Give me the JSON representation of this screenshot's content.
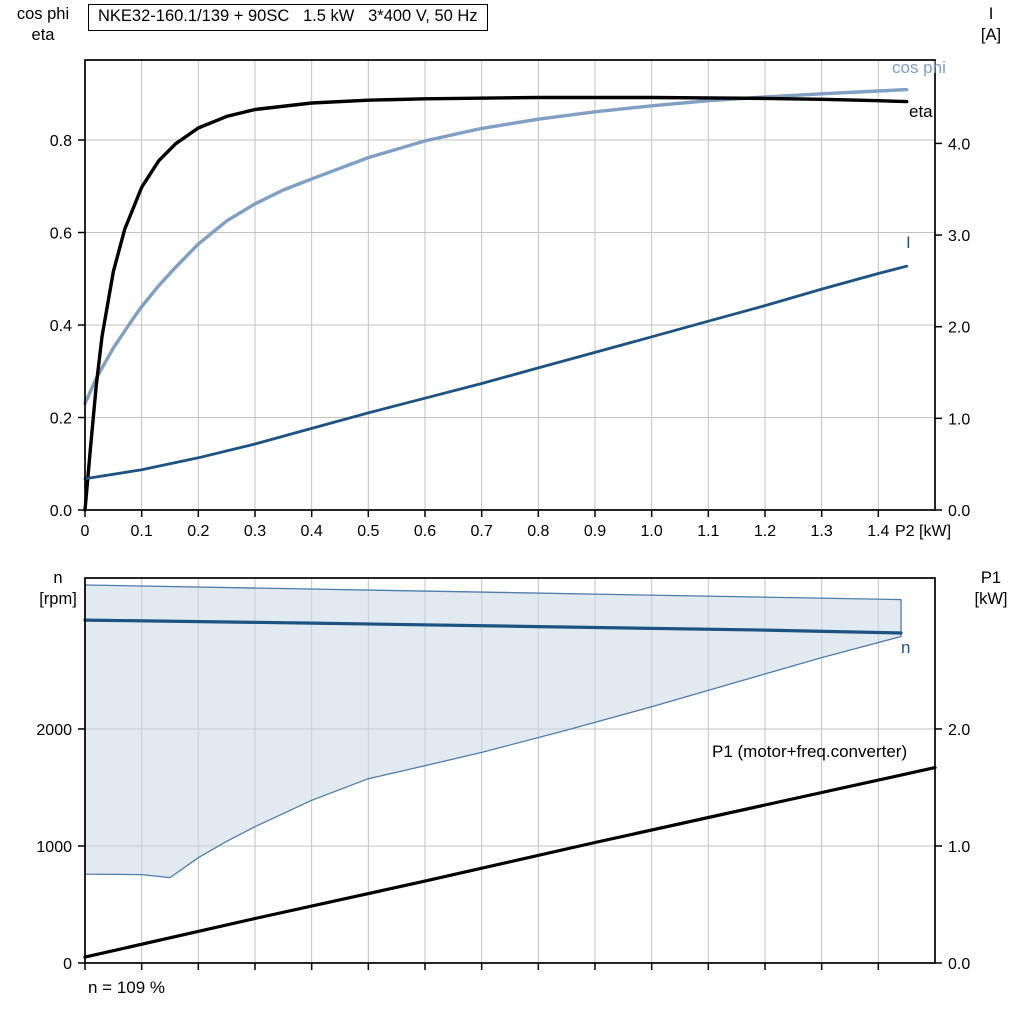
{
  "title_box": {
    "text": "NKE32-160.1/139 + 90SC   1.5 kW   3*400 V, 50 Hz"
  },
  "axis_corner_labels": {
    "top_left": [
      "cos phi",
      "eta"
    ],
    "top_right": [
      "I",
      "[A]"
    ],
    "bottom_left": [
      "n",
      "[rpm]"
    ],
    "bottom_right": [
      "P1",
      "[kW]"
    ]
  },
  "annotations": {
    "cos_phi": "cos phi",
    "eta": "eta",
    "current": "I",
    "speed": "n",
    "p1": "P1 (motor+freq.converter)",
    "note": "n = 109 %"
  },
  "colors": {
    "light_blue": "#7fa0c2",
    "dark_blue": "#1d5382",
    "black": "#000000",
    "envelope_fill": "#c9d7e5",
    "envelope_stroke": "#4d7dab",
    "grid": "#c2c2c2"
  },
  "chart_data": [
    {
      "type": "line",
      "title": "NKE32-160.1/139 + 90SC   1.5 kW   3*400 V, 50 Hz",
      "grid": true,
      "x_axis": {
        "min": 0,
        "max": 1.5,
        "label": "P2 [kW]",
        "ticks": [
          0,
          0.1,
          0.2,
          0.3,
          0.4,
          0.5,
          0.6,
          0.7,
          0.8,
          0.9,
          1.0,
          1.1,
          1.2,
          1.3,
          1.4
        ],
        "tick_labels": [
          "0",
          "0.1",
          "0.2",
          "0.3",
          "0.4",
          "0.5",
          "0.6",
          "0.7",
          "0.8",
          "0.9",
          "1.0",
          "1.1",
          "1.2",
          "1.3",
          "1.4"
        ]
      },
      "y_left": {
        "min": 0,
        "max": 0.973,
        "label": "cos phi / eta",
        "ticks": [
          0,
          0.2,
          0.4,
          0.6,
          0.8
        ],
        "tick_labels": [
          "0.0",
          "0.2",
          "0.4",
          "0.6",
          "0.8"
        ]
      },
      "y_right": {
        "min": 0,
        "max": 4.91,
        "label": "I [A]",
        "ticks": [
          0,
          1,
          2,
          3,
          4
        ],
        "tick_labels": [
          "0.0",
          "1.0",
          "2.0",
          "3.0",
          "4.0"
        ]
      },
      "series": [
        {
          "id": "cos_phi",
          "name": "cos phi",
          "type": "line",
          "axis": "left",
          "color": "#7fa0c2",
          "width": 3.4,
          "x": [
            0,
            0.02,
            0.05,
            0.08,
            0.1,
            0.13,
            0.16,
            0.2,
            0.25,
            0.3,
            0.35,
            0.4,
            0.5,
            0.6,
            0.7,
            0.8,
            0.9,
            1.0,
            1.1,
            1.2,
            1.3,
            1.4,
            1.45
          ],
          "y": [
            0.23,
            0.285,
            0.35,
            0.405,
            0.44,
            0.485,
            0.525,
            0.575,
            0.625,
            0.662,
            0.692,
            0.716,
            0.762,
            0.798,
            0.825,
            0.845,
            0.861,
            0.874,
            0.885,
            0.893,
            0.9,
            0.906,
            0.909
          ]
        },
        {
          "id": "eta",
          "name": "eta",
          "type": "line",
          "axis": "left",
          "color": "#000000",
          "width": 3.4,
          "x": [
            0,
            0.01,
            0.02,
            0.03,
            0.05,
            0.07,
            0.1,
            0.13,
            0.16,
            0.2,
            0.25,
            0.3,
            0.4,
            0.5,
            0.6,
            0.8,
            1.0,
            1.1,
            1.2,
            1.3,
            1.4,
            1.45
          ],
          "y": [
            0.0,
            0.14,
            0.27,
            0.375,
            0.515,
            0.607,
            0.698,
            0.755,
            0.792,
            0.826,
            0.851,
            0.866,
            0.88,
            0.886,
            0.889,
            0.892,
            0.892,
            0.891,
            0.89,
            0.888,
            0.885,
            0.883
          ]
        },
        {
          "id": "current",
          "name": "I",
          "type": "line",
          "axis": "right",
          "color": "#1d5382",
          "width": 2.8,
          "x": [
            0,
            0.1,
            0.2,
            0.3,
            0.4,
            0.5,
            0.6,
            0.7,
            0.8,
            0.9,
            1.0,
            1.1,
            1.2,
            1.3,
            1.4,
            1.45
          ],
          "y": [
            0.34,
            0.44,
            0.57,
            0.72,
            0.89,
            1.06,
            1.22,
            1.38,
            1.55,
            1.72,
            1.89,
            2.06,
            2.23,
            2.41,
            2.58,
            2.66
          ]
        }
      ]
    },
    {
      "type": "line",
      "title": "",
      "grid": true,
      "x_axis": {
        "min": 0,
        "max": 1.5,
        "label": "",
        "ticks": [
          0,
          0.1,
          0.2,
          0.3,
          0.4,
          0.5,
          0.6,
          0.7,
          0.8,
          0.9,
          1.0,
          1.1,
          1.2,
          1.3,
          1.4
        ],
        "tick_labels": []
      },
      "y_left": {
        "min": 0,
        "max": 3290,
        "label": "n [rpm]",
        "ticks": [
          0,
          1000,
          2000
        ],
        "tick_labels": [
          "0",
          "1000",
          "2000"
        ]
      },
      "y_right": {
        "min": 0,
        "max": 3.29,
        "label": "P1 [kW]",
        "ticks": [
          0,
          1,
          2
        ],
        "tick_labels": [
          "0.0",
          "1.0",
          "2.0"
        ]
      },
      "series": [
        {
          "id": "speed_range",
          "name": "speed control range envelope",
          "type": "area",
          "axis": "left",
          "fill": "#c9d7e5",
          "fill_opacity": 0.55,
          "stroke": "#4d7dab",
          "stroke_width": 1.3,
          "x": [
            0,
            1.44,
            1.44,
            1.3,
            1.15,
            1.0,
            0.85,
            0.7,
            0.55,
            0.5,
            0.4,
            0.3,
            0.25,
            0.2,
            0.15,
            0.1,
            0
          ],
          "y": [
            3230,
            3105,
            2790,
            2610,
            2400,
            2190,
            1990,
            1800,
            1630,
            1575,
            1390,
            1165,
            1040,
            900,
            730,
            755,
            760
          ]
        },
        {
          "id": "speed",
          "name": "n",
          "type": "line",
          "axis": "left",
          "color": "#1d5382",
          "width": 3.2,
          "x": [
            0,
            0.4,
            0.8,
            1.2,
            1.44
          ],
          "y": [
            2930,
            2905,
            2875,
            2845,
            2820
          ]
        },
        {
          "id": "p1",
          "name": "P1 (motor+freq.converter)",
          "type": "line",
          "axis": "right",
          "color": "#000000",
          "width": 3.2,
          "x": [
            0,
            0.3,
            0.6,
            0.9,
            1.2,
            1.5
          ],
          "y": [
            0.05,
            0.38,
            0.7,
            1.03,
            1.35,
            1.67
          ]
        }
      ]
    }
  ]
}
